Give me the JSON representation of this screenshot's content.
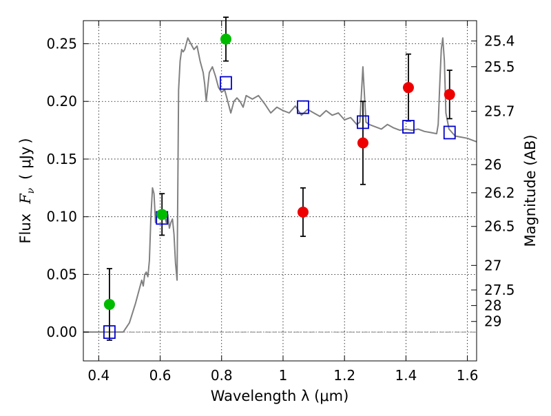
{
  "chart_data": {
    "type": "scatter",
    "title": "",
    "xlabel": "Wavelength  λ (μm)",
    "ylabel": "Flux  F_ν  ( μJy )",
    "ylabel_parts": [
      "Flux",
      "F",
      "ν",
      "(",
      "μJy",
      ")"
    ],
    "y2label": "Magnitude (AB)",
    "xlim": [
      0.35,
      1.63
    ],
    "ylim": [
      -0.025,
      0.27
    ],
    "grid": true,
    "x_ticks": [
      0.4,
      0.6,
      0.8,
      1.0,
      1.2,
      1.4,
      1.6
    ],
    "x_tick_labels": [
      "0.4",
      "0.6",
      "0.8",
      "1",
      "1.2",
      "1.4",
      "1.6"
    ],
    "y_ticks": [
      0.0,
      0.05,
      0.1,
      0.15,
      0.2,
      0.25
    ],
    "y_tick_labels": [
      "0.00",
      "0.05",
      "0.10",
      "0.15",
      "0.20",
      "0.25"
    ],
    "y2_ticks": [
      {
        "label": "25.4",
        "flux": 0.2524
      },
      {
        "label": "25.5",
        "flux": 0.2301
      },
      {
        "label": "25.7",
        "flux": 0.1914
      },
      {
        "label": "26",
        "flux": 0.1452
      },
      {
        "label": "26.2",
        "flux": 0.1208
      },
      {
        "label": "26.5",
        "flux": 0.0916
      },
      {
        "label": "27",
        "flux": 0.0578
      },
      {
        "label": "27.5",
        "flux": 0.0365
      },
      {
        "label": "28",
        "flux": 0.023
      },
      {
        "label": "29",
        "flux": 0.0092
      }
    ],
    "colors": {
      "green": "#00bb00",
      "red": "#ee0000",
      "model_line": "#808080",
      "model_box": "#0000cc"
    },
    "series": [
      {
        "marker": "circle",
        "color": "#00bb00",
        "points": [
          {
            "x": 0.435,
            "y": 0.024,
            "err": 0.031
          },
          {
            "x": 0.606,
            "y": 0.102,
            "err": 0.018
          },
          {
            "x": 0.814,
            "y": 0.254,
            "err": 0.019
          }
        ]
      },
      {
        "marker": "circle",
        "color": "#ee0000",
        "points": [
          {
            "x": 1.065,
            "y": 0.104,
            "err": 0.021
          },
          {
            "x": 1.26,
            "y": 0.164,
            "err": 0.036
          },
          {
            "x": 1.408,
            "y": 0.212,
            "err": 0.029
          },
          {
            "x": 1.542,
            "y": 0.206,
            "err": 0.021
          }
        ]
      },
      {
        "marker": "open-square",
        "color": "#0000cc",
        "points": [
          {
            "x": 0.435,
            "y": 0.0
          },
          {
            "x": 0.606,
            "y": 0.099
          },
          {
            "x": 0.814,
            "y": 0.216
          },
          {
            "x": 1.065,
            "y": 0.195
          },
          {
            "x": 1.26,
            "y": 0.182
          },
          {
            "x": 1.408,
            "y": 0.178
          },
          {
            "x": 1.542,
            "y": 0.173
          }
        ]
      },
      {
        "marker": "line",
        "color": "#808080",
        "x": [
          0.35,
          0.48,
          0.5,
          0.52,
          0.54,
          0.545,
          0.55,
          0.555,
          0.56,
          0.565,
          0.57,
          0.575,
          0.58,
          0.585,
          0.59,
          0.6,
          0.61,
          0.62,
          0.625,
          0.63,
          0.635,
          0.64,
          0.645,
          0.65,
          0.655,
          0.66,
          0.665,
          0.67,
          0.675,
          0.68,
          0.69,
          0.7,
          0.71,
          0.72,
          0.73,
          0.74,
          0.745,
          0.75,
          0.76,
          0.77,
          0.78,
          0.79,
          0.8,
          0.81,
          0.82,
          0.83,
          0.84,
          0.85,
          0.86,
          0.87,
          0.88,
          0.9,
          0.92,
          0.94,
          0.96,
          0.98,
          1.0,
          1.02,
          1.04,
          1.06,
          1.08,
          1.1,
          1.12,
          1.14,
          1.16,
          1.18,
          1.2,
          1.22,
          1.24,
          1.25,
          1.26,
          1.265,
          1.27,
          1.28,
          1.3,
          1.32,
          1.34,
          1.36,
          1.38,
          1.4,
          1.42,
          1.44,
          1.46,
          1.48,
          1.5,
          1.505,
          1.51,
          1.515,
          1.52,
          1.525,
          1.53,
          1.54,
          1.56,
          1.58,
          1.6,
          1.62,
          1.63
        ],
        "y": [
          0.0,
          0.0,
          0.008,
          0.025,
          0.045,
          0.04,
          0.05,
          0.052,
          0.048,
          0.062,
          0.1,
          0.125,
          0.12,
          0.095,
          0.102,
          0.098,
          0.105,
          0.095,
          0.102,
          0.09,
          0.095,
          0.098,
          0.085,
          0.06,
          0.045,
          0.21,
          0.235,
          0.245,
          0.243,
          0.245,
          0.255,
          0.25,
          0.245,
          0.248,
          0.235,
          0.225,
          0.215,
          0.2,
          0.225,
          0.23,
          0.222,
          0.212,
          0.208,
          0.21,
          0.2,
          0.19,
          0.2,
          0.203,
          0.2,
          0.195,
          0.205,
          0.202,
          0.205,
          0.198,
          0.19,
          0.195,
          0.192,
          0.19,
          0.196,
          0.188,
          0.193,
          0.19,
          0.187,
          0.192,
          0.188,
          0.19,
          0.184,
          0.186,
          0.18,
          0.182,
          0.23,
          0.205,
          0.182,
          0.18,
          0.178,
          0.176,
          0.18,
          0.177,
          0.175,
          0.176,
          0.175,
          0.176,
          0.174,
          0.173,
          0.172,
          0.18,
          0.215,
          0.245,
          0.255,
          0.235,
          0.19,
          0.176,
          0.17,
          0.169,
          0.168,
          0.166,
          0.165
        ]
      }
    ]
  }
}
